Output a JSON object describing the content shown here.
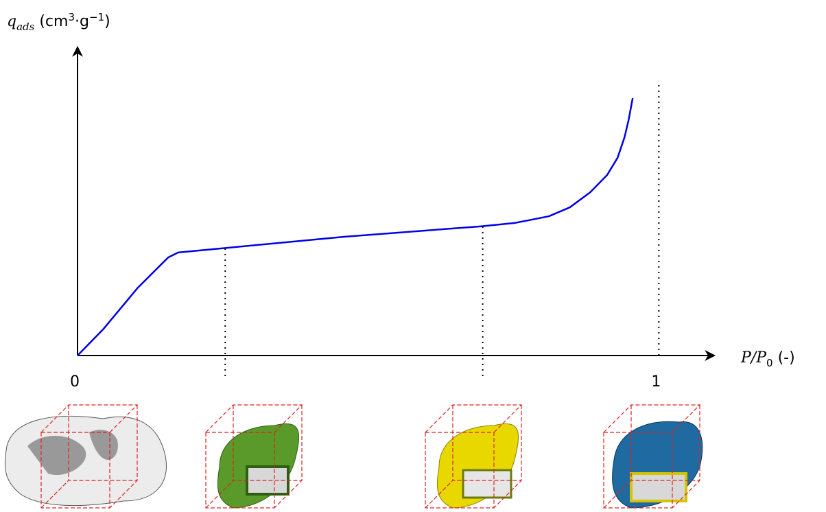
{
  "chart_data": {
    "type": "line",
    "ylabel": [
      "q",
      "ads",
      " (cm",
      "3",
      "·g",
      "−1",
      ")"
    ],
    "xlabel": [
      "P/P",
      "0",
      " (-)"
    ],
    "x": [
      0,
      0.044,
      0.103,
      0.156,
      0.173,
      0.256,
      0.457,
      0.693,
      0.752,
      0.811,
      0.847,
      0.882,
      0.911,
      0.929,
      0.941,
      0.948,
      0.955
    ],
    "series": [
      {
        "color": "#0000e6",
        "values": [
          0,
          0.085,
          0.219,
          0.319,
          0.335,
          0.35,
          0.386,
          0.42,
          0.431,
          0.453,
          0.482,
          0.531,
          0.587,
          0.643,
          0.71,
          0.766,
          0.837
        ]
      }
    ],
    "xlim": [
      0,
      1.094
    ],
    "ylim": [
      0,
      1
    ],
    "xticks": [
      0,
      1
    ],
    "vlines": [
      {
        "x": 0.254,
        "y": [
          -0.067,
          0.35
        ]
      },
      {
        "x": 0.697,
        "y": [
          -0.067,
          0.42
        ]
      },
      {
        "x": 1,
        "y": [
          0,
          0.893
        ]
      }
    ]
  }
}
